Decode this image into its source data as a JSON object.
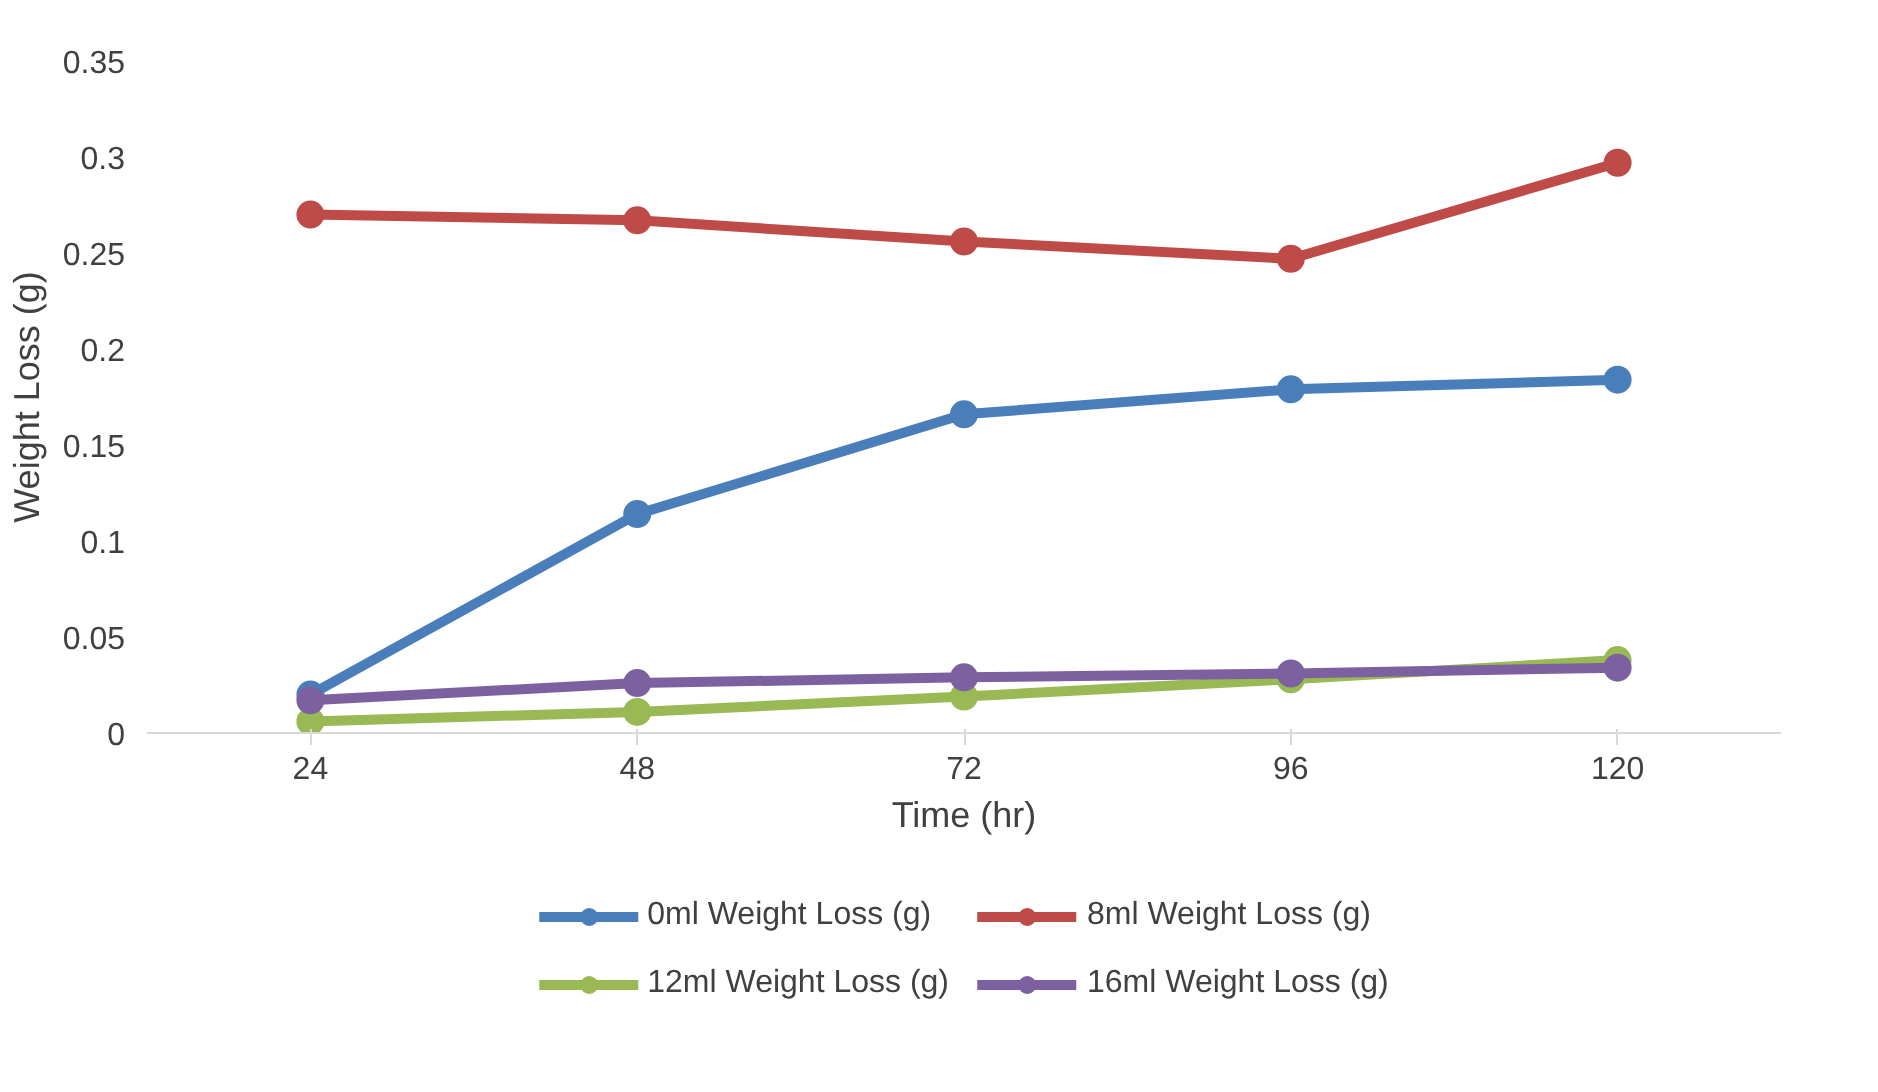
{
  "chart_data": {
    "type": "line",
    "xlabel": "Time (hr)",
    "ylabel": "Weight Loss (g)",
    "categories": [
      "24",
      "48",
      "72",
      "96",
      "120"
    ],
    "ylim": [
      0,
      0.35
    ],
    "yticks": [
      0,
      0.05,
      0.1,
      0.15,
      0.2,
      0.25,
      0.3,
      0.35
    ],
    "grid": false,
    "legend": "bottom",
    "marker": "circle",
    "line_style": "solid",
    "series": [
      {
        "name": "0ml Weight Loss (g)",
        "color": "#4a7ebb",
        "values": [
          0.02,
          0.114,
          0.166,
          0.179,
          0.184
        ]
      },
      {
        "name": "8ml Weight Loss (g)",
        "color": "#be4b48",
        "values": [
          0.27,
          0.267,
          0.256,
          0.247,
          0.297
        ]
      },
      {
        "name": "12ml Weight Loss (g)",
        "color": "#98b954",
        "values": [
          0.006,
          0.011,
          0.019,
          0.028,
          0.038
        ]
      },
      {
        "name": "16ml Weight Loss (g)",
        "color": "#7d60a0",
        "values": [
          0.017,
          0.026,
          0.029,
          0.031,
          0.034
        ]
      }
    ]
  }
}
